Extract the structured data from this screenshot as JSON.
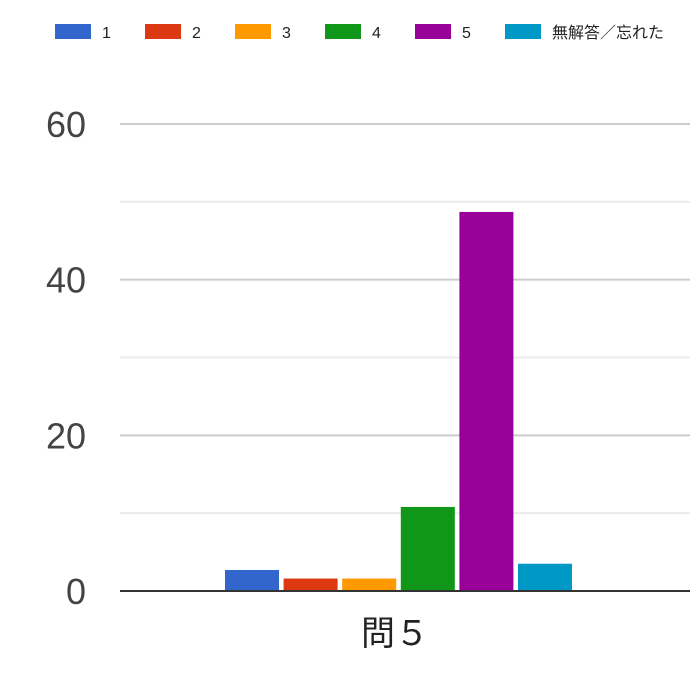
{
  "chart_data": {
    "type": "bar",
    "categories": [
      "問５"
    ],
    "series": [
      {
        "name": "1",
        "values": [
          2.7
        ],
        "color": "#3366cc"
      },
      {
        "name": "2",
        "values": [
          1.6
        ],
        "color": "#dc3912"
      },
      {
        "name": "3",
        "values": [
          1.6
        ],
        "color": "#ff9900"
      },
      {
        "name": "4",
        "values": [
          10.8
        ],
        "color": "#109618"
      },
      {
        "name": "5",
        "values": [
          48.7
        ],
        "color": "#990099"
      },
      {
        "name": "無解答／忘れた",
        "values": [
          3.5
        ],
        "color": "#0099c6"
      }
    ],
    "yticks": [
      "0",
      "20",
      "40",
      "60"
    ],
    "ylim": [
      0,
      60
    ],
    "grid": true,
    "legend": "top"
  }
}
